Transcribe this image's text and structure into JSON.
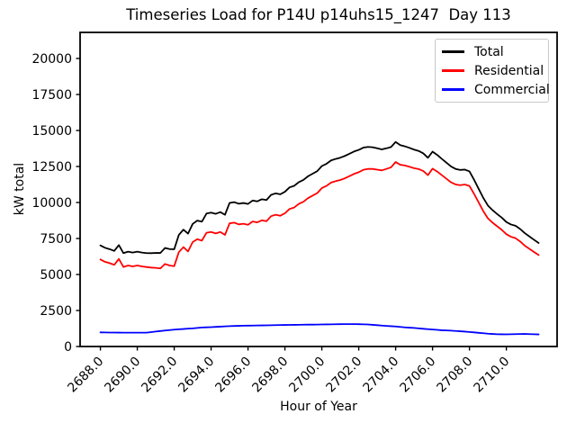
{
  "title": "Timeseries Load for P14U p14uhs15_1247  Day 113",
  "axes": {
    "xlabel": "Hour of Year",
    "ylabel": "kW total"
  },
  "legend": {
    "position": "upper right",
    "items": [
      {
        "label": "Total",
        "color": "#000000"
      },
      {
        "label": "Residential",
        "color": "#ff0000"
      },
      {
        "label": "Commercial",
        "color": "#0000ff"
      }
    ]
  },
  "chart_data": {
    "type": "line",
    "title": "Timeseries Load for P14U p14uhs15_1247  Day 113",
    "xlabel": "Hour of Year",
    "ylabel": "kW total",
    "grid": false,
    "legend_position": "upper right",
    "xlim": [
      2686.9,
      2712.75
    ],
    "ylim": [
      0,
      21810
    ],
    "xticks": [
      2688.0,
      2690.0,
      2692.0,
      2694.0,
      2696.0,
      2698.0,
      2700.0,
      2702.0,
      2704.0,
      2706.0,
      2708.0,
      2710.0
    ],
    "yticks": [
      0,
      2500,
      5000,
      7500,
      10000,
      12500,
      15000,
      17500,
      20000
    ],
    "x_start": 2688.0,
    "x_step": 0.25,
    "series": [
      {
        "name": "Total",
        "color": "#000000",
        "values": [
          7020,
          6855,
          6760,
          6638,
          7045,
          6483,
          6587,
          6521,
          6585,
          6521,
          6483,
          6480,
          6500,
          6495,
          6840,
          6765,
          6750,
          7745,
          8115,
          7840,
          8510,
          8740,
          8670,
          9233,
          9295,
          9213,
          9330,
          9148,
          9965,
          10025,
          9915,
          9963,
          9900,
          10135,
          10080,
          10225,
          10170,
          10528,
          10635,
          10570,
          10745,
          11050,
          11155,
          11410,
          11565,
          11818,
          12000,
          12175,
          12530,
          12685,
          12920,
          13025,
          13110,
          13233,
          13385,
          13543,
          13650,
          13810,
          13860,
          13835,
          13760,
          13685,
          13760,
          13850,
          14200,
          13980,
          13900,
          13790,
          13670,
          13580,
          13410,
          13105,
          13530,
          13305,
          13030,
          12765,
          12500,
          12330,
          12260,
          12285,
          12160,
          11580,
          10950,
          10320,
          9790,
          9470,
          9200,
          8948,
          8645,
          8472,
          8380,
          8155,
          7870,
          7640,
          7410,
          7190
        ]
      },
      {
        "name": "Residential",
        "color": "#ff0000",
        "values": [
          6040,
          5880,
          5790,
          5670,
          6080,
          5520,
          5625,
          5560,
          5625,
          5560,
          5520,
          5480,
          5460,
          5420,
          5730,
          5625,
          5580,
          6550,
          6900,
          6600,
          7250,
          7450,
          7350,
          7900,
          7950,
          7850,
          7950,
          7750,
          8550,
          8600,
          8480,
          8520,
          8450,
          8680,
          8620,
          8760,
          8700,
          9050,
          9150,
          9080,
          9250,
          9550,
          9650,
          9900,
          10050,
          10300,
          10480,
          10650,
          11000,
          11150,
          11380,
          11480,
          11560,
          11680,
          11830,
          11990,
          12100,
          12270,
          12330,
          12330,
          12280,
          12230,
          12330,
          12440,
          12810,
          12620,
          12570,
          12480,
          12380,
          12320,
          12180,
          11900,
          12350,
          12150,
          11900,
          11650,
          11400,
          11250,
          11200,
          11250,
          11150,
          10600,
          10000,
          9400,
          8900,
          8600,
          8350,
          8100,
          7800,
          7620,
          7520,
          7290,
          7000,
          6780,
          6560,
          6350
        ]
      },
      {
        "name": "Commercial",
        "color": "#0000ff",
        "values": [
          980,
          975,
          970,
          968,
          965,
          963,
          962,
          961,
          960,
          961,
          963,
          1000,
          1040,
          1075,
          1110,
          1140,
          1170,
          1195,
          1215,
          1240,
          1260,
          1290,
          1320,
          1333,
          1345,
          1363,
          1380,
          1398,
          1415,
          1425,
          1435,
          1443,
          1450,
          1455,
          1460,
          1465,
          1470,
          1478,
          1485,
          1490,
          1495,
          1500,
          1505,
          1510,
          1515,
          1518,
          1520,
          1525,
          1530,
          1535,
          1540,
          1545,
          1550,
          1553,
          1555,
          1553,
          1550,
          1540,
          1530,
          1505,
          1480,
          1455,
          1430,
          1410,
          1390,
          1360,
          1330,
          1310,
          1290,
          1260,
          1230,
          1205,
          1180,
          1155,
          1130,
          1115,
          1100,
          1080,
          1060,
          1035,
          1010,
          980,
          950,
          920,
          890,
          870,
          850,
          848,
          845,
          852,
          860,
          865,
          870,
          860,
          850,
          840
        ]
      }
    ]
  }
}
